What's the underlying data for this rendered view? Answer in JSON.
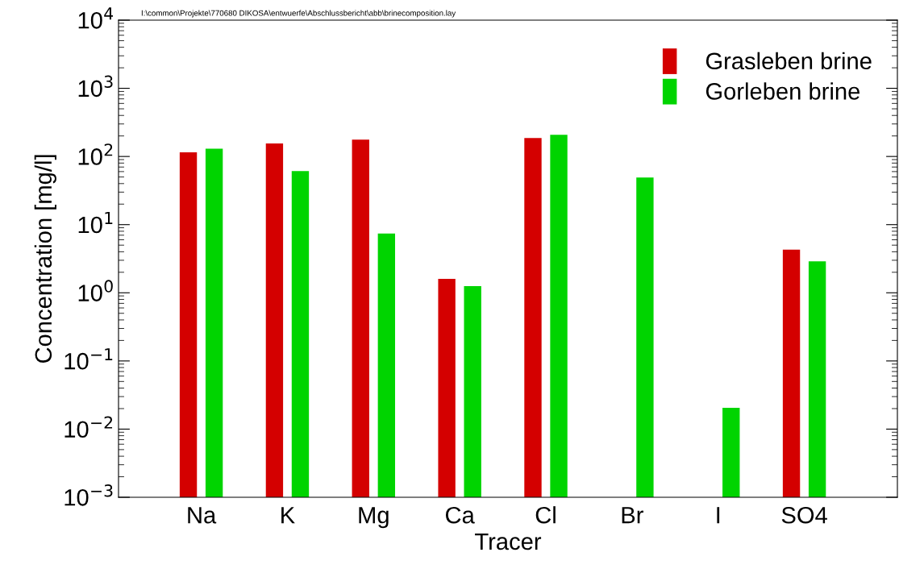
{
  "chart_data": {
    "type": "bar",
    "xlabel": "Tracer",
    "ylabel": "Concentration [mg/l]",
    "annotations": [
      "I:\\common\\Projekte\\770680 DIKOSA\\entwuerfe\\Abschlussbericht\\abb\\brinecomposition.lay"
    ],
    "categories": [
      "Na",
      "K",
      "Mg",
      "Ca",
      "Cl",
      "Br",
      "I",
      "SO4"
    ],
    "series": [
      {
        "name": "Grasleben brine",
        "color": "#d40000",
        "values": [
          115,
          155,
          177,
          1.6,
          187,
          null,
          null,
          4.3
        ]
      },
      {
        "name": "Gorleben brine",
        "color": "#00d400",
        "values": [
          130,
          61,
          7.4,
          1.25,
          208,
          49,
          0.0205,
          2.9
        ]
      }
    ],
    "log": "y",
    "ylim": [
      0.001,
      10000
    ],
    "yticks": [
      {
        "value": 0.001,
        "label": "10$^{−3}$"
      },
      {
        "value": 0.01,
        "label": "10$^{−2}$"
      },
      {
        "value": 0.1,
        "label": "10$^{−1}$"
      },
      {
        "value": 1,
        "label": "10$^{0}$"
      },
      {
        "value": 10,
        "label": "10$^{1}$"
      },
      {
        "value": 100,
        "label": "10$^{2}$"
      },
      {
        "value": 1000,
        "label": "10$^{3}$"
      },
      {
        "value": 10000,
        "label": "10$^{4}$"
      }
    ],
    "legend": "top right",
    "grid": false
  }
}
